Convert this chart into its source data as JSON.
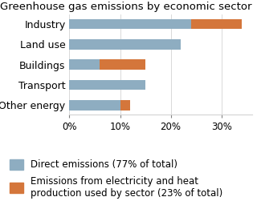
{
  "title": "Greenhouse gas emissions by economic sector",
  "categories": [
    "Other energy",
    "Transport",
    "Buildings",
    "Land use",
    "Industry"
  ],
  "direct": [
    10,
    15,
    6,
    22,
    24
  ],
  "indirect": [
    2,
    0,
    9,
    0,
    10
  ],
  "direct_color": "#8eadc1",
  "indirect_color": "#d4763b",
  "xticks": [
    0,
    10,
    20,
    30
  ],
  "xticklabels": [
    "0%",
    "10%",
    "20%",
    "30%"
  ],
  "xlim": [
    0,
    36
  ],
  "legend1": "Direct emissions (77% of total)",
  "legend2": "Emissions from electricity and heat\nproduction used by sector (23% of total)",
  "title_fontsize": 9.5,
  "label_fontsize": 9,
  "tick_fontsize": 8.5,
  "legend_fontsize": 8.5,
  "bar_height": 0.5
}
